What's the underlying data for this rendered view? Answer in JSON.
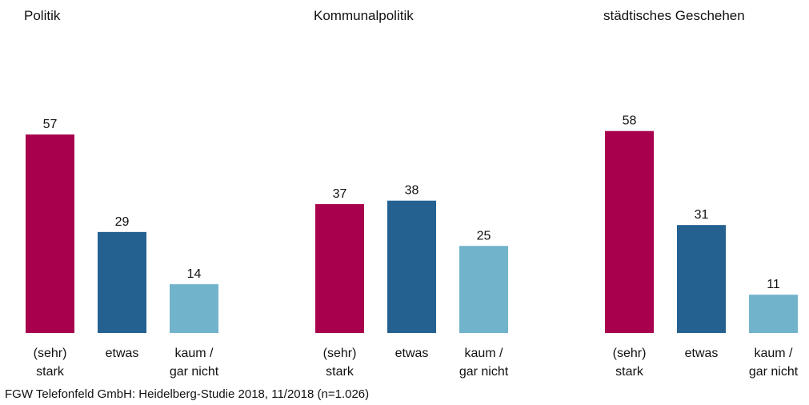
{
  "chart_data": [
    {
      "type": "bar",
      "title": "Politik",
      "categories": [
        "(sehr) stark",
        "etwas",
        "kaum / gar nicht"
      ],
      "values": [
        57,
        29,
        14
      ],
      "colors": [
        "#a8004c",
        "#246191",
        "#72b3cc"
      ]
    },
    {
      "type": "bar",
      "title": "Kommunalpolitik",
      "categories": [
        "(sehr) stark",
        "etwas",
        "kaum / gar nicht"
      ],
      "values": [
        37,
        38,
        25
      ],
      "colors": [
        "#a8004c",
        "#246191",
        "#72b3cc"
      ]
    },
    {
      "type": "bar",
      "title": "städtisches Geschehen",
      "categories": [
        "(sehr) stark",
        "etwas",
        "kaum / gar nicht"
      ],
      "values": [
        58,
        31,
        11
      ],
      "colors": [
        "#a8004c",
        "#246191",
        "#72b3cc"
      ]
    }
  ],
  "source": "FGW Telefonfeld GmbH: Heidelberg-Studie 2018, 11/2018 (n=1.026)"
}
